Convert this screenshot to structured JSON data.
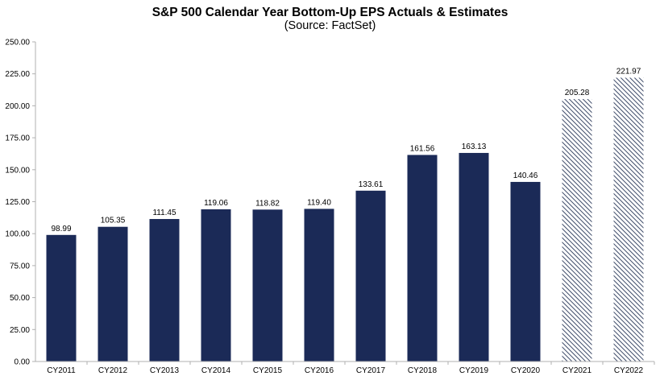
{
  "chart_data": {
    "type": "bar",
    "title": "S&P 500 Calendar Year Bottom-Up EPS Actuals & Estimates",
    "subtitle": "(Source: FactSet)",
    "categories": [
      "CY2011",
      "CY2012",
      "CY2013",
      "CY2014",
      "CY2015",
      "CY2016",
      "CY2017",
      "CY2018",
      "CY2019",
      "CY2020",
      "CY2021",
      "CY2022"
    ],
    "series": [
      {
        "values": [
          98.99,
          105.35,
          111.45,
          119.06,
          118.82,
          119.4,
          133.61,
          161.56,
          163.13,
          140.46,
          205.28,
          221.97
        ],
        "value_labels": [
          "98.99",
          "105.35",
          "111.45",
          "119.06",
          "118.82",
          "119.40",
          "133.61",
          "161.56",
          "163.13",
          "140.46",
          "205.28",
          "221.97"
        ],
        "kind": [
          "actual",
          "actual",
          "actual",
          "actual",
          "actual",
          "actual",
          "actual",
          "actual",
          "actual",
          "actual",
          "estimate",
          "estimate"
        ]
      }
    ],
    "ylim": [
      0,
      250
    ],
    "yticks": [
      0,
      25,
      50,
      75,
      100,
      125,
      150,
      175,
      200,
      225,
      250
    ],
    "ytick_labels": [
      "0.00",
      "25.00",
      "50.00",
      "75.00",
      "100.00",
      "125.00",
      "150.00",
      "175.00",
      "200.00",
      "225.00",
      "250.00"
    ],
    "xlabel": "",
    "ylabel": "",
    "grid": false,
    "legend": "none",
    "colors": {
      "actual": "#1b2a57",
      "estimate_stripe": "#3d4a68",
      "estimate_bg": "#ffffff",
      "axis": "#b0b0b0",
      "text": "#000000"
    }
  }
}
